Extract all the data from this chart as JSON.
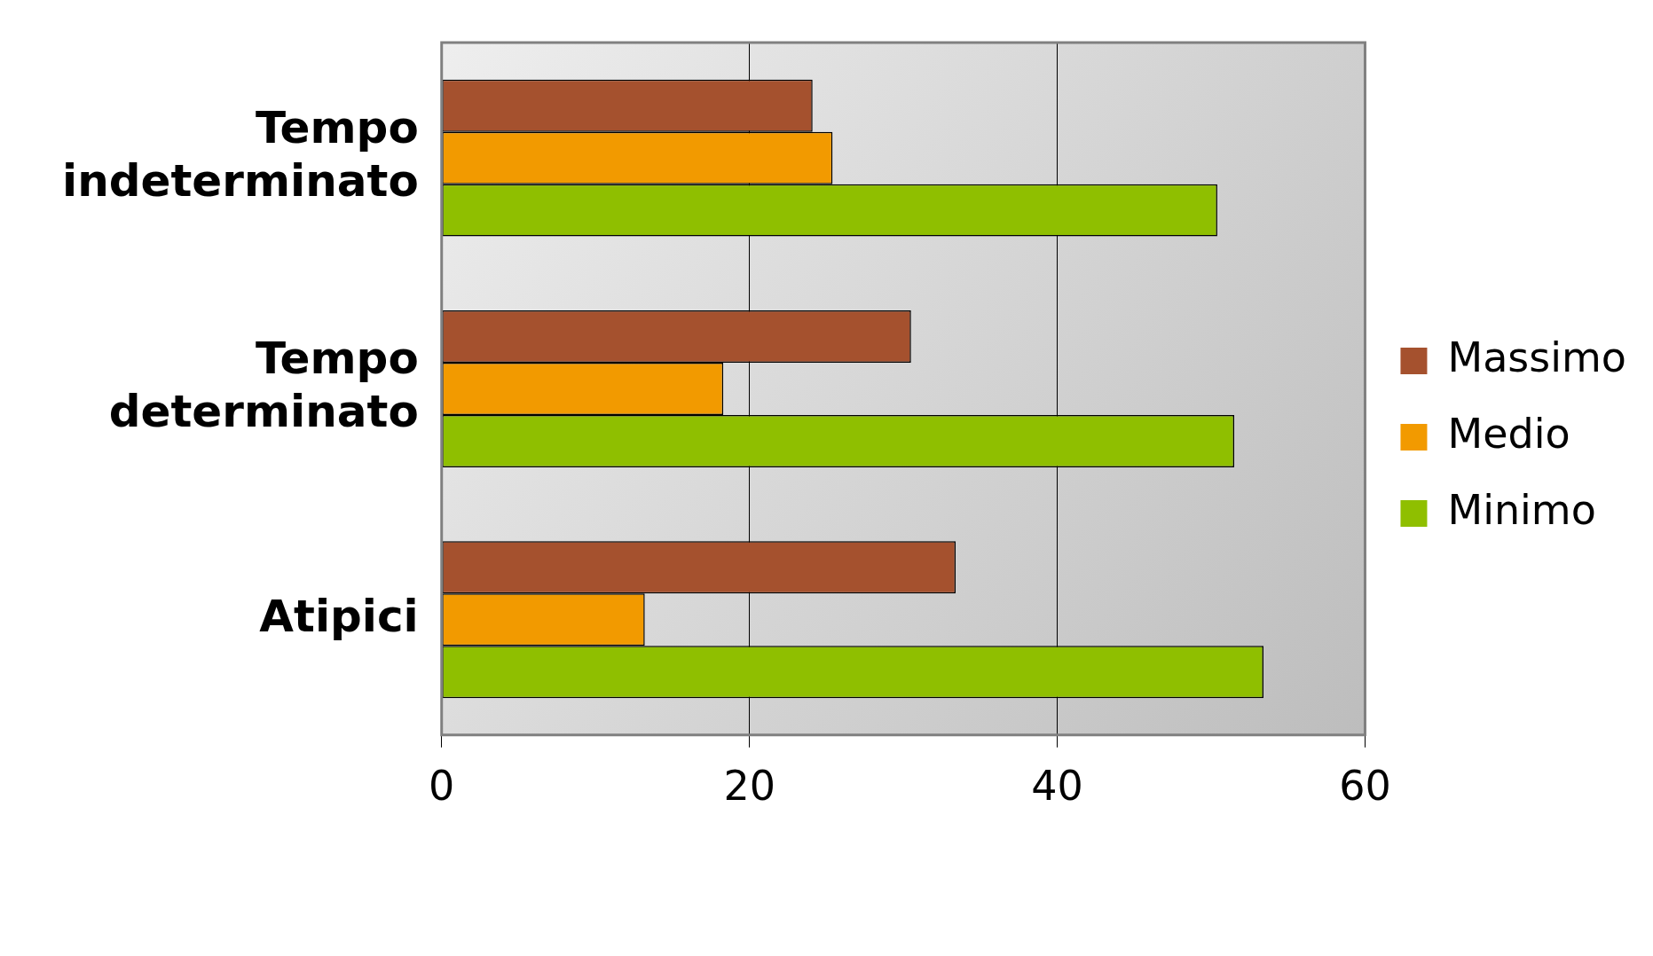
{
  "chart_data": {
    "type": "bar",
    "orientation": "horizontal",
    "categories": [
      "Tempo indeterminato",
      "Tempo determinato",
      "Atipici"
    ],
    "series": [
      {
        "name": "Massimo",
        "color": "#a5512e",
        "values": [
          24.1,
          30.5,
          33.4
        ]
      },
      {
        "name": "Medio",
        "color": "#f29a00",
        "values": [
          25.4,
          18.3,
          13.2
        ]
      },
      {
        "name": "Minimo",
        "color": "#8fbf00",
        "values": [
          50.4,
          51.5,
          53.4
        ]
      }
    ],
    "xlim": [
      0,
      60
    ],
    "xticks": [
      0,
      20,
      40,
      60
    ],
    "grid": "x",
    "legend": "right"
  }
}
